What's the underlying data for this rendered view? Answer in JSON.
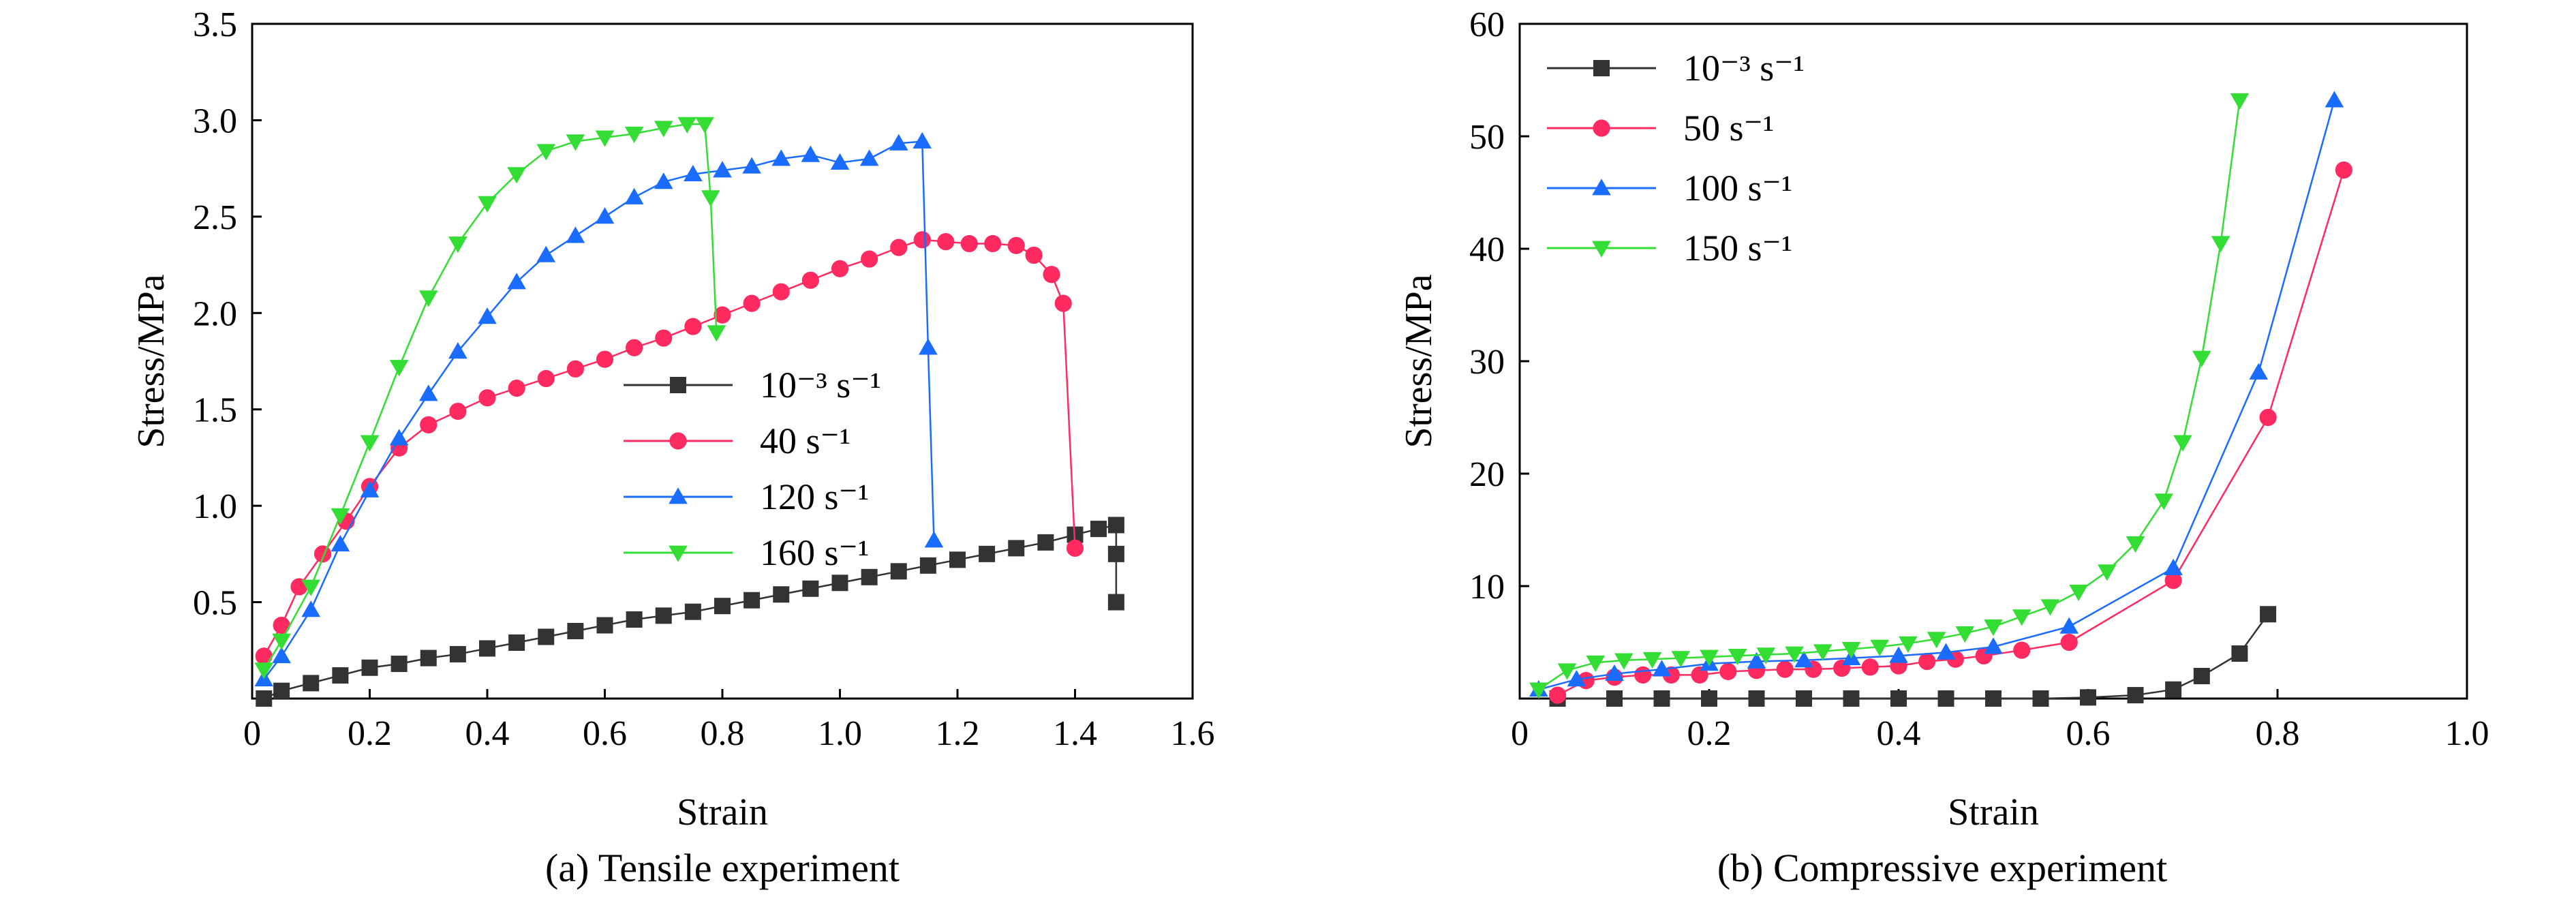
{
  "chart_data": [
    {
      "type": "line",
      "subtitle": "(a) Tensile experiment",
      "xlabel": "Strain",
      "ylabel": "Stress/MPa",
      "xlim": [
        0,
        1.6
      ],
      "ylim": [
        0,
        3.5
      ],
      "xticks": [
        "0",
        "0.2",
        "0.4",
        "0.6",
        "0.8",
        "1.0",
        "1.2",
        "1.4",
        "1.6"
      ],
      "yticks": [
        "0.5",
        "1.0",
        "1.5",
        "2.0",
        "2.5",
        "3.0",
        "3.5"
      ],
      "grid": false,
      "legend_position": "center-right",
      "series": [
        {
          "name": "10⁻³ s⁻¹",
          "color": "#333333",
          "marker": "square",
          "points": [
            [
              0.02,
              0.0
            ],
            [
              0.05,
              0.04
            ],
            [
              0.1,
              0.08
            ],
            [
              0.15,
              0.12
            ],
            [
              0.2,
              0.16
            ],
            [
              0.25,
              0.18
            ],
            [
              0.3,
              0.21
            ],
            [
              0.35,
              0.23
            ],
            [
              0.4,
              0.26
            ],
            [
              0.45,
              0.29
            ],
            [
              0.5,
              0.32
            ],
            [
              0.55,
              0.35
            ],
            [
              0.6,
              0.38
            ],
            [
              0.65,
              0.41
            ],
            [
              0.7,
              0.43
            ],
            [
              0.75,
              0.45
            ],
            [
              0.8,
              0.48
            ],
            [
              0.85,
              0.51
            ],
            [
              0.9,
              0.54
            ],
            [
              0.95,
              0.57
            ],
            [
              1.0,
              0.6
            ],
            [
              1.05,
              0.63
            ],
            [
              1.1,
              0.66
            ],
            [
              1.15,
              0.69
            ],
            [
              1.2,
              0.72
            ],
            [
              1.25,
              0.75
            ],
            [
              1.3,
              0.78
            ],
            [
              1.35,
              0.81
            ],
            [
              1.4,
              0.85
            ],
            [
              1.44,
              0.88
            ],
            [
              1.47,
              0.9
            ],
            [
              1.47,
              0.75
            ],
            [
              1.47,
              0.5
            ]
          ]
        },
        {
          "name": "40 s⁻¹",
          "color": "#ff2a5f",
          "marker": "circle",
          "points": [
            [
              0.02,
              0.22
            ],
            [
              0.05,
              0.38
            ],
            [
              0.08,
              0.58
            ],
            [
              0.12,
              0.75
            ],
            [
              0.16,
              0.92
            ],
            [
              0.2,
              1.1
            ],
            [
              0.25,
              1.3
            ],
            [
              0.3,
              1.42
            ],
            [
              0.35,
              1.49
            ],
            [
              0.4,
              1.56
            ],
            [
              0.45,
              1.61
            ],
            [
              0.5,
              1.66
            ],
            [
              0.55,
              1.71
            ],
            [
              0.6,
              1.76
            ],
            [
              0.65,
              1.82
            ],
            [
              0.7,
              1.87
            ],
            [
              0.75,
              1.93
            ],
            [
              0.8,
              1.99
            ],
            [
              0.85,
              2.05
            ],
            [
              0.9,
              2.11
            ],
            [
              0.95,
              2.17
            ],
            [
              1.0,
              2.23
            ],
            [
              1.05,
              2.28
            ],
            [
              1.1,
              2.34
            ],
            [
              1.14,
              2.38
            ],
            [
              1.18,
              2.37
            ],
            [
              1.22,
              2.36
            ],
            [
              1.26,
              2.36
            ],
            [
              1.3,
              2.35
            ],
            [
              1.33,
              2.3
            ],
            [
              1.36,
              2.2
            ],
            [
              1.38,
              2.05
            ],
            [
              1.4,
              0.78
            ]
          ]
        },
        {
          "name": "120 s⁻¹",
          "color": "#1a6cff",
          "marker": "triangle-up",
          "points": [
            [
              0.02,
              0.1
            ],
            [
              0.05,
              0.22
            ],
            [
              0.1,
              0.46
            ],
            [
              0.15,
              0.8
            ],
            [
              0.2,
              1.08
            ],
            [
              0.25,
              1.35
            ],
            [
              0.3,
              1.58
            ],
            [
              0.35,
              1.8
            ],
            [
              0.4,
              1.98
            ],
            [
              0.45,
              2.16
            ],
            [
              0.5,
              2.3
            ],
            [
              0.55,
              2.4
            ],
            [
              0.6,
              2.5
            ],
            [
              0.65,
              2.6
            ],
            [
              0.7,
              2.68
            ],
            [
              0.75,
              2.72
            ],
            [
              0.8,
              2.74
            ],
            [
              0.85,
              2.76
            ],
            [
              0.9,
              2.8
            ],
            [
              0.95,
              2.82
            ],
            [
              1.0,
              2.78
            ],
            [
              1.05,
              2.8
            ],
            [
              1.1,
              2.88
            ],
            [
              1.14,
              2.89
            ],
            [
              1.15,
              1.82
            ],
            [
              1.16,
              0.82
            ]
          ]
        },
        {
          "name": "160 s⁻¹",
          "color": "#33dd33",
          "marker": "triangle-down",
          "points": [
            [
              0.02,
              0.15
            ],
            [
              0.05,
              0.3
            ],
            [
              0.1,
              0.58
            ],
            [
              0.15,
              0.95
            ],
            [
              0.2,
              1.33
            ],
            [
              0.25,
              1.72
            ],
            [
              0.3,
              2.08
            ],
            [
              0.35,
              2.36
            ],
            [
              0.4,
              2.57
            ],
            [
              0.45,
              2.72
            ],
            [
              0.5,
              2.84
            ],
            [
              0.55,
              2.89
            ],
            [
              0.6,
              2.91
            ],
            [
              0.65,
              2.93
            ],
            [
              0.7,
              2.96
            ],
            [
              0.74,
              2.98
            ],
            [
              0.77,
              2.98
            ],
            [
              0.78,
              2.6
            ],
            [
              0.79,
              1.9
            ]
          ]
        }
      ]
    },
    {
      "type": "line",
      "subtitle": "(b) Compressive experiment",
      "xlabel": "Strain",
      "ylabel": "Stress/MPa",
      "xlim": [
        0,
        1.0
      ],
      "ylim": [
        0,
        60
      ],
      "xticks": [
        "0",
        "0.2",
        "0.4",
        "0.6",
        "0.8",
        "1.0"
      ],
      "yticks": [
        "10",
        "20",
        "30",
        "40",
        "50",
        "60"
      ],
      "grid": false,
      "legend_position": "top-left",
      "series": [
        {
          "name": "10⁻³ s⁻¹",
          "color": "#333333",
          "marker": "square",
          "points": [
            [
              0.04,
              0.0
            ],
            [
              0.1,
              0.0
            ],
            [
              0.15,
              0.0
            ],
            [
              0.2,
              0.0
            ],
            [
              0.25,
              0.0
            ],
            [
              0.3,
              0.0
            ],
            [
              0.35,
              0.0
            ],
            [
              0.4,
              0.0
            ],
            [
              0.45,
              0.0
            ],
            [
              0.5,
              0.0
            ],
            [
              0.55,
              0.0
            ],
            [
              0.6,
              0.1
            ],
            [
              0.65,
              0.3
            ],
            [
              0.69,
              0.8
            ],
            [
              0.72,
              2.0
            ],
            [
              0.76,
              4.0
            ],
            [
              0.79,
              7.5
            ]
          ]
        },
        {
          "name": "50 s⁻¹",
          "color": "#ff2a5f",
          "marker": "circle",
          "points": [
            [
              0.04,
              0.3
            ],
            [
              0.07,
              1.6
            ],
            [
              0.1,
              1.9
            ],
            [
              0.13,
              2.1
            ],
            [
              0.16,
              2.1
            ],
            [
              0.19,
              2.1
            ],
            [
              0.22,
              2.4
            ],
            [
              0.25,
              2.5
            ],
            [
              0.28,
              2.6
            ],
            [
              0.31,
              2.6
            ],
            [
              0.34,
              2.7
            ],
            [
              0.37,
              2.8
            ],
            [
              0.4,
              2.9
            ],
            [
              0.43,
              3.3
            ],
            [
              0.46,
              3.5
            ],
            [
              0.49,
              3.8
            ],
            [
              0.53,
              4.3
            ],
            [
              0.58,
              5.0
            ],
            [
              0.69,
              10.5
            ],
            [
              0.79,
              25.0
            ],
            [
              0.87,
              47.0
            ]
          ]
        },
        {
          "name": "100 s⁻¹",
          "color": "#1a6cff",
          "marker": "triangle-up",
          "points": [
            [
              0.02,
              0.8
            ],
            [
              0.06,
              1.7
            ],
            [
              0.1,
              2.2
            ],
            [
              0.15,
              2.6
            ],
            [
              0.2,
              3.1
            ],
            [
              0.25,
              3.3
            ],
            [
              0.3,
              3.4
            ],
            [
              0.35,
              3.6
            ],
            [
              0.4,
              3.8
            ],
            [
              0.45,
              4.1
            ],
            [
              0.5,
              4.6
            ],
            [
              0.58,
              6.4
            ],
            [
              0.69,
              11.6
            ],
            [
              0.78,
              29.0
            ],
            [
              0.86,
              53.2
            ]
          ]
        },
        {
          "name": "150 s⁻¹",
          "color": "#33dd33",
          "marker": "triangle-down",
          "points": [
            [
              0.02,
              0.8
            ],
            [
              0.05,
              2.5
            ],
            [
              0.08,
              3.2
            ],
            [
              0.11,
              3.4
            ],
            [
              0.14,
              3.5
            ],
            [
              0.17,
              3.6
            ],
            [
              0.2,
              3.7
            ],
            [
              0.23,
              3.8
            ],
            [
              0.26,
              3.9
            ],
            [
              0.29,
              4.0
            ],
            [
              0.32,
              4.2
            ],
            [
              0.35,
              4.4
            ],
            [
              0.38,
              4.6
            ],
            [
              0.41,
              4.9
            ],
            [
              0.44,
              5.3
            ],
            [
              0.47,
              5.8
            ],
            [
              0.5,
              6.4
            ],
            [
              0.53,
              7.3
            ],
            [
              0.56,
              8.2
            ],
            [
              0.59,
              9.5
            ],
            [
              0.62,
              11.3
            ],
            [
              0.65,
              13.8
            ],
            [
              0.68,
              17.6
            ],
            [
              0.7,
              22.8
            ],
            [
              0.72,
              30.3
            ],
            [
              0.74,
              40.5
            ],
            [
              0.76,
              53.2
            ]
          ]
        }
      ]
    }
  ]
}
